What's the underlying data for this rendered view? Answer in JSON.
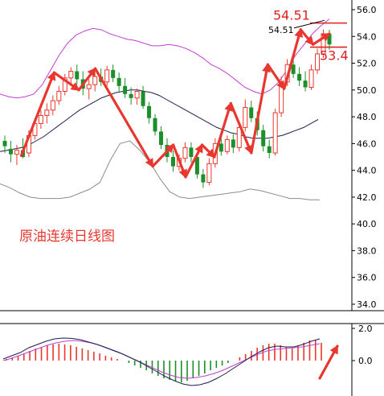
{
  "chart_data": {
    "type": "candlestick",
    "title": "原油连续日线图",
    "main": {
      "ylim": [
        34,
        56
      ],
      "y_ticks": [
        "56.0",
        "54.0",
        "52.0",
        "50.0",
        "48.0",
        "46.0",
        "44.0",
        "42.0",
        "40.0",
        "38.0",
        "36.0",
        "34.0"
      ],
      "candles": [
        {
          "o": 46.2,
          "h": 46.6,
          "l": 45.3,
          "c": 45.8
        },
        {
          "o": 45.6,
          "h": 46.2,
          "l": 44.6,
          "c": 45.2
        },
        {
          "o": 45.2,
          "h": 45.9,
          "l": 44.4,
          "c": 45.5
        },
        {
          "o": 45.5,
          "h": 46.4,
          "l": 44.9,
          "c": 45.0
        },
        {
          "o": 45.3,
          "h": 47.0,
          "l": 45.0,
          "c": 46.6
        },
        {
          "o": 46.6,
          "h": 47.9,
          "l": 46.3,
          "c": 47.5
        },
        {
          "o": 47.5,
          "h": 48.5,
          "l": 47.1,
          "c": 48.1
        },
        {
          "o": 48.1,
          "h": 49.0,
          "l": 47.5,
          "c": 48.5
        },
        {
          "o": 48.5,
          "h": 49.6,
          "l": 48.1,
          "c": 49.2
        },
        {
          "o": 49.2,
          "h": 50.3,
          "l": 48.9,
          "c": 49.9
        },
        {
          "o": 49.9,
          "h": 51.2,
          "l": 49.6,
          "c": 50.9
        },
        {
          "o": 50.9,
          "h": 51.7,
          "l": 50.3,
          "c": 51.4
        },
        {
          "o": 51.4,
          "h": 51.9,
          "l": 50.4,
          "c": 50.8
        },
        {
          "o": 50.8,
          "h": 51.4,
          "l": 49.6,
          "c": 50.1
        },
        {
          "o": 50.1,
          "h": 50.8,
          "l": 49.3,
          "c": 50.4
        },
        {
          "o": 50.4,
          "h": 51.3,
          "l": 49.9,
          "c": 51.0
        },
        {
          "o": 51.0,
          "h": 51.6,
          "l": 50.3,
          "c": 50.6
        },
        {
          "o": 50.6,
          "h": 51.8,
          "l": 50.3,
          "c": 51.5
        },
        {
          "o": 51.5,
          "h": 51.9,
          "l": 50.6,
          "c": 50.9
        },
        {
          "o": 50.9,
          "h": 51.3,
          "l": 49.9,
          "c": 50.3
        },
        {
          "o": 50.3,
          "h": 50.9,
          "l": 49.4,
          "c": 49.7
        },
        {
          "o": 49.7,
          "h": 50.2,
          "l": 48.9,
          "c": 49.4
        },
        {
          "o": 49.4,
          "h": 50.1,
          "l": 48.9,
          "c": 49.9
        },
        {
          "o": 49.9,
          "h": 50.3,
          "l": 48.6,
          "c": 48.8
        },
        {
          "o": 48.8,
          "h": 49.1,
          "l": 47.5,
          "c": 47.9
        },
        {
          "o": 47.9,
          "h": 48.2,
          "l": 46.6,
          "c": 46.9
        },
        {
          "o": 46.9,
          "h": 47.3,
          "l": 45.6,
          "c": 45.9
        },
        {
          "o": 45.9,
          "h": 46.4,
          "l": 44.6,
          "c": 45.0
        },
        {
          "o": 45.0,
          "h": 45.5,
          "l": 43.9,
          "c": 44.3
        },
        {
          "o": 44.3,
          "h": 45.2,
          "l": 44.0,
          "c": 44.9
        },
        {
          "o": 44.9,
          "h": 46.1,
          "l": 44.6,
          "c": 45.7
        },
        {
          "o": 45.7,
          "h": 46.1,
          "l": 44.6,
          "c": 45.0
        },
        {
          "o": 45.0,
          "h": 45.3,
          "l": 43.4,
          "c": 43.7
        },
        {
          "o": 43.7,
          "h": 44.1,
          "l": 42.7,
          "c": 43.1
        },
        {
          "o": 43.1,
          "h": 44.9,
          "l": 42.9,
          "c": 44.5
        },
        {
          "o": 44.5,
          "h": 46.4,
          "l": 44.2,
          "c": 46.0
        },
        {
          "o": 46.0,
          "h": 46.5,
          "l": 45.1,
          "c": 45.4
        },
        {
          "o": 45.4,
          "h": 46.6,
          "l": 45.2,
          "c": 46.3
        },
        {
          "o": 46.3,
          "h": 46.7,
          "l": 45.3,
          "c": 45.7
        },
        {
          "o": 45.7,
          "h": 47.6,
          "l": 45.4,
          "c": 47.2
        },
        {
          "o": 47.2,
          "h": 49.3,
          "l": 46.9,
          "c": 48.7
        },
        {
          "o": 48.7,
          "h": 49.2,
          "l": 47.6,
          "c": 47.9
        },
        {
          "o": 47.9,
          "h": 48.4,
          "l": 46.6,
          "c": 47.0
        },
        {
          "o": 47.0,
          "h": 47.4,
          "l": 45.4,
          "c": 45.8
        },
        {
          "o": 45.8,
          "h": 46.3,
          "l": 44.9,
          "c": 45.3
        },
        {
          "o": 45.3,
          "h": 48.6,
          "l": 45.1,
          "c": 48.3
        },
        {
          "o": 48.3,
          "h": 51.0,
          "l": 48.0,
          "c": 50.6
        },
        {
          "o": 50.6,
          "h": 52.3,
          "l": 50.3,
          "c": 51.9
        },
        {
          "o": 51.9,
          "h": 52.3,
          "l": 50.9,
          "c": 51.2
        },
        {
          "o": 51.2,
          "h": 51.7,
          "l": 50.3,
          "c": 50.7
        },
        {
          "o": 50.7,
          "h": 51.4,
          "l": 49.9,
          "c": 50.2
        },
        {
          "o": 50.2,
          "h": 51.9,
          "l": 50.0,
          "c": 51.5
        },
        {
          "o": 51.5,
          "h": 53.1,
          "l": 51.2,
          "c": 52.7
        },
        {
          "o": 52.7,
          "h": 54.51,
          "l": 52.4,
          "c": 54.2
        },
        {
          "o": 54.2,
          "h": 54.5,
          "l": 53.0,
          "c": 53.4
        }
      ],
      "ma_dark": [
        45.4,
        45.5,
        45.6,
        45.7,
        45.9,
        46.2,
        46.5,
        46.9,
        47.3,
        47.7,
        48.1,
        48.5,
        48.8,
        49.1,
        49.4,
        49.6,
        49.8,
        49.9,
        50.0,
        50.0,
        49.9,
        49.8,
        49.6,
        49.3,
        49.0,
        48.7,
        48.4,
        48.1,
        47.8,
        47.5,
        47.2,
        47.0,
        46.8,
        46.7,
        46.5,
        46.4,
        46.4,
        46.4,
        46.5,
        46.6,
        46.8,
        47.0,
        47.2,
        47.5,
        47.8
      ],
      "bb_upper": [
        49.7,
        49.5,
        49.4,
        49.5,
        49.7,
        50.4,
        51.5,
        52.6,
        53.5,
        54.1,
        54.4,
        54.6,
        54.5,
        54.2,
        54.0,
        53.8,
        53.7,
        53.5,
        53.3,
        53.3,
        53.4,
        53.3,
        53.1,
        52.8,
        52.4,
        51.9,
        51.6,
        51.2,
        50.7,
        50.2,
        49.9,
        49.7,
        50.0,
        50.6,
        51.5,
        52.6,
        53.4,
        54.2,
        54.8,
        55.3
      ],
      "bb_lower": [
        43.0,
        42.7,
        42.3,
        42.0,
        41.9,
        41.9,
        41.9,
        42.0,
        42.3,
        42.6,
        43.1,
        44.7,
        46.0,
        46.2,
        45.5,
        44.6,
        43.4,
        42.4,
        42.0,
        41.9,
        42.0,
        42.1,
        42.2,
        42.3,
        42.4,
        42.6,
        42.5,
        42.3,
        42.1,
        41.9,
        41.9,
        41.8,
        41.8
      ],
      "annotations": [
        {
          "text": "54.51",
          "color": "#e02020",
          "size": "large",
          "price": 55.6
        },
        {
          "text": "54.51",
          "color": "#000000",
          "size": "small",
          "price": 54.51
        },
        {
          "text": "53.4",
          "color": "#e02020",
          "size": "large",
          "price": 52.6
        }
      ],
      "hlines": [
        55.0,
        53.2
      ]
    },
    "macd": {
      "ylim": [
        -2.0,
        2.0
      ],
      "y_ticks": [
        "2.0",
        "0.0"
      ],
      "histogram": [
        0.1,
        0.2,
        0.3,
        0.45,
        0.6,
        0.75,
        0.85,
        0.95,
        1.0,
        1.05,
        1.0,
        0.95,
        0.85,
        0.75,
        0.65,
        0.55,
        0.45,
        0.3,
        0.2,
        0.1,
        0.0,
        -0.15,
        -0.3,
        -0.45,
        -0.6,
        -0.8,
        -0.95,
        -1.1,
        -1.2,
        -1.3,
        -1.35,
        -1.25,
        -1.1,
        -0.95,
        -0.8,
        -0.6,
        -0.45,
        -0.3,
        -0.15,
        0.0,
        0.2,
        0.4,
        0.6,
        0.8,
        0.95,
        1.05,
        1.05,
        0.95,
        0.85,
        0.75,
        0.95,
        1.1,
        1.25,
        1.3,
        1.1
      ],
      "dif": [
        0.1,
        0.3,
        0.5,
        0.8,
        1.0,
        1.2,
        1.35,
        1.4,
        1.38,
        1.3,
        1.15,
        1.0,
        0.8,
        0.6,
        0.4,
        0.15,
        -0.1,
        -0.4,
        -0.7,
        -1.0,
        -1.25,
        -1.45,
        -1.55,
        -1.5,
        -1.35,
        -1.1,
        -0.8,
        -0.45,
        -0.1,
        0.25,
        0.55,
        0.8,
        0.9,
        0.85,
        0.85,
        1.0,
        1.2,
        1.35
      ],
      "dea": [
        0.0,
        0.15,
        0.35,
        0.55,
        0.75,
        0.95,
        1.1,
        1.2,
        1.25,
        1.2,
        1.1,
        0.95,
        0.75,
        0.55,
        0.3,
        0.05,
        -0.2,
        -0.45,
        -0.7,
        -0.9,
        -1.05,
        -1.1,
        -1.05,
        -0.95,
        -0.8,
        -0.6,
        -0.35,
        -0.1,
        0.15,
        0.4,
        0.6,
        0.7,
        0.75,
        0.8,
        0.85,
        0.95,
        1.05
      ]
    }
  }
}
